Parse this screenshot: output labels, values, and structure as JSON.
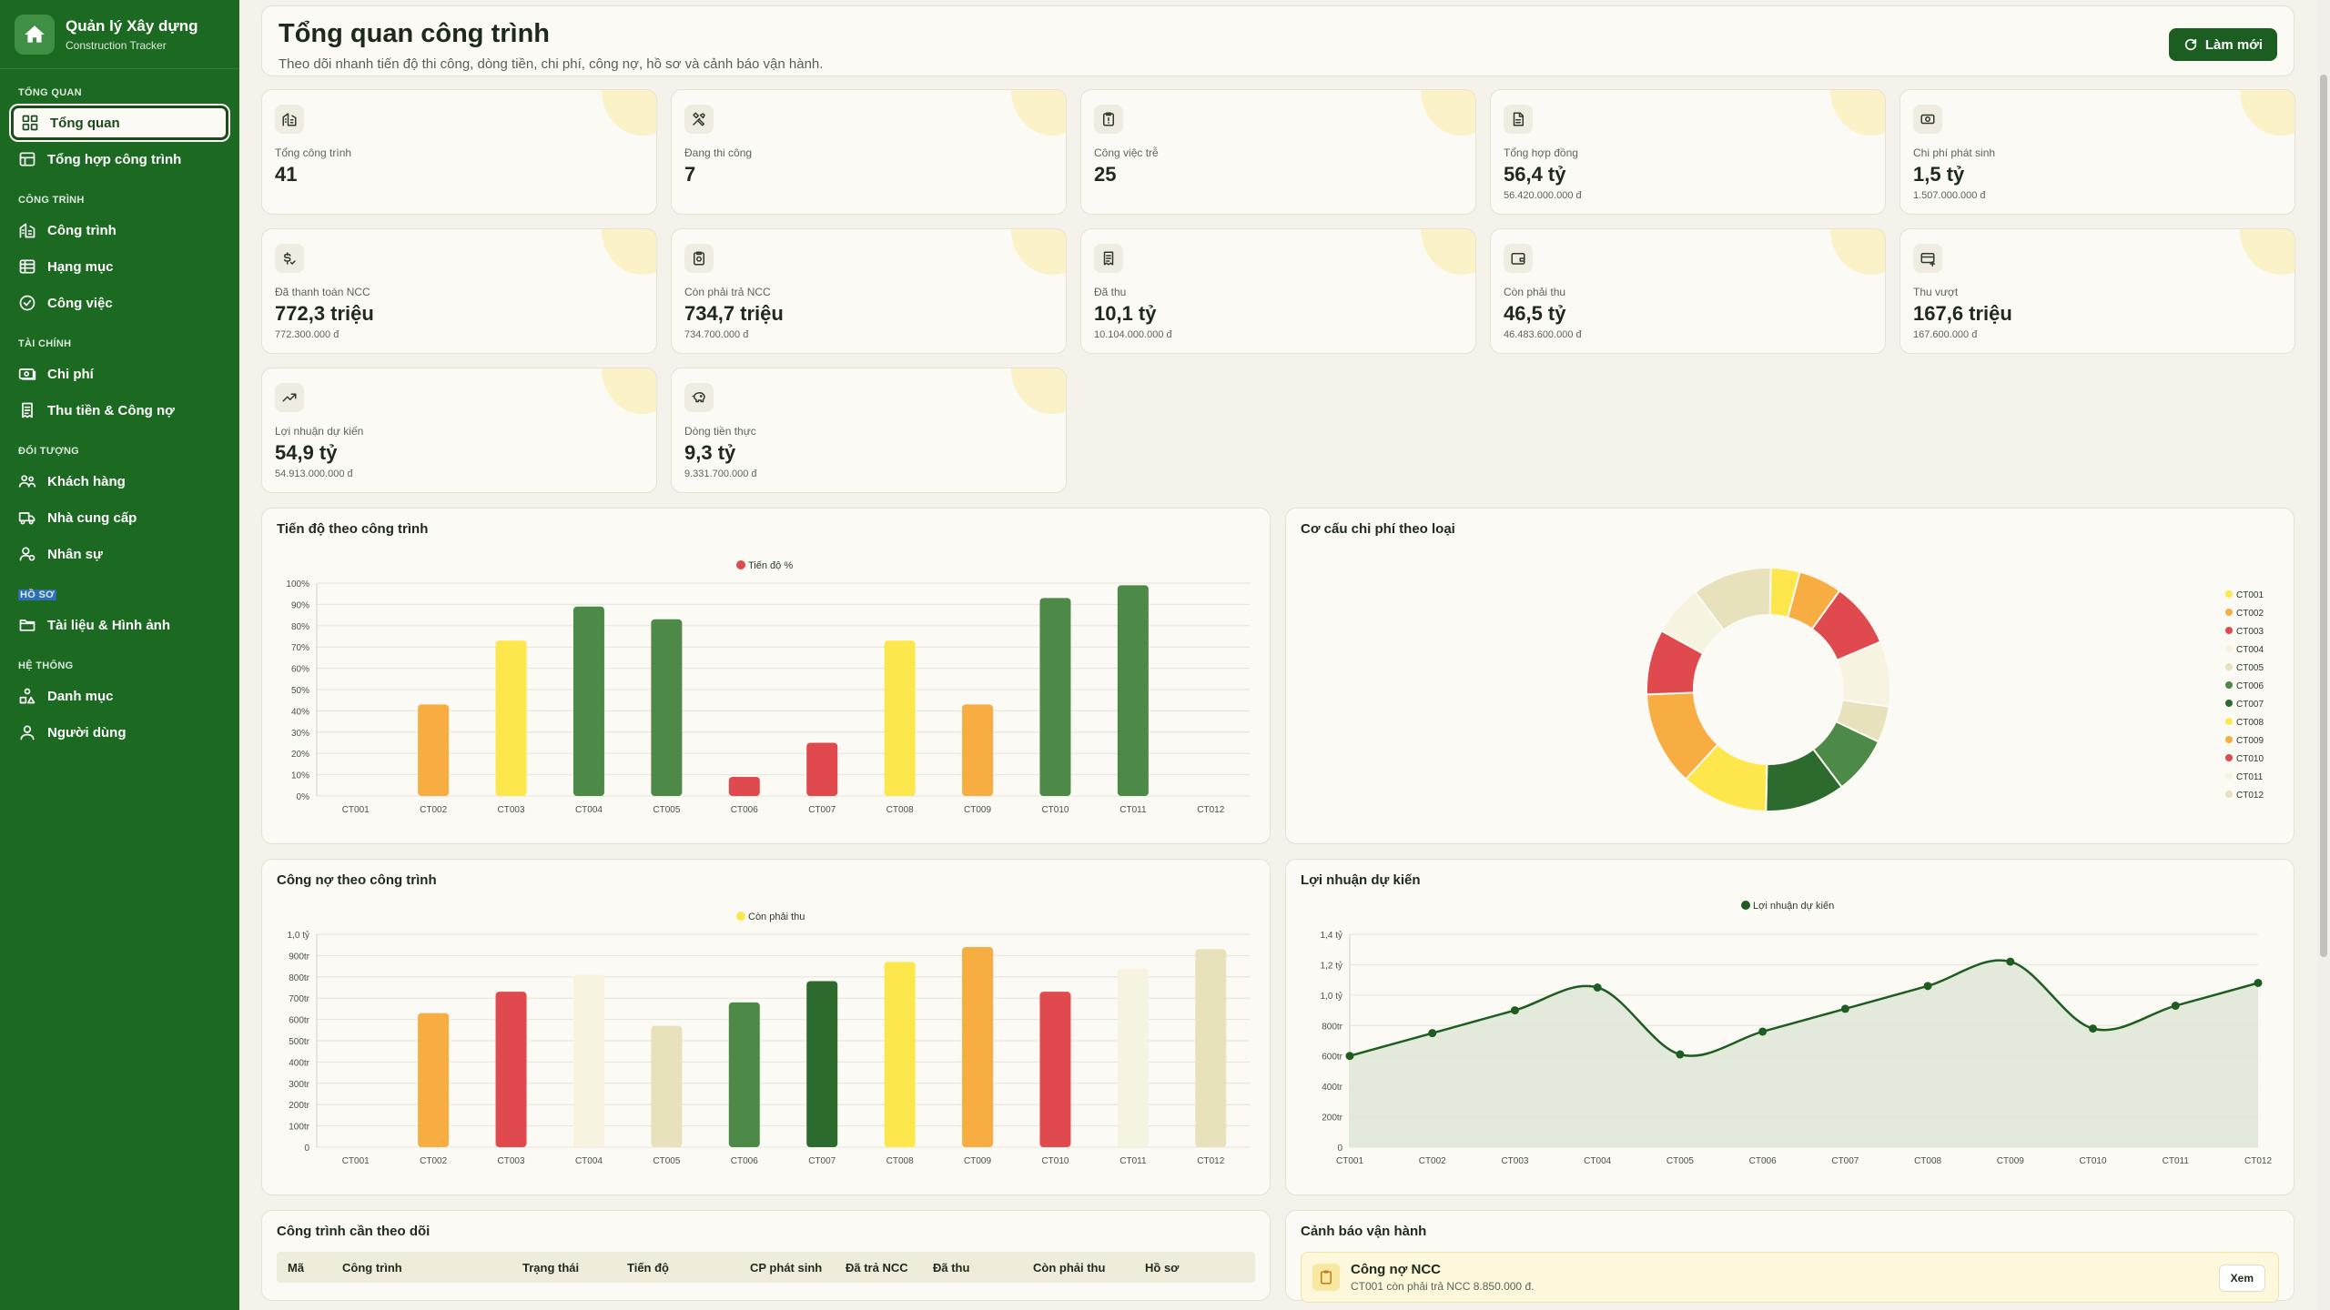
{
  "sidebar": {
    "brand_title": "Quản lý Xây dựng",
    "brand_sub": "Construction Tracker",
    "sections": [
      {
        "label": "TỔNG QUAN",
        "items": [
          {
            "label": "Tổng quan",
            "icon": "dashboard-icon"
          },
          {
            "label": "Tổng hợp công trình",
            "icon": "table-icon"
          }
        ]
      },
      {
        "label": "CÔNG TRÌNH",
        "items": [
          {
            "label": "Công trình",
            "icon": "building-icon"
          },
          {
            "label": "Hạng mục",
            "icon": "list-icon"
          },
          {
            "label": "Công việc",
            "icon": "check-circle-icon"
          }
        ]
      },
      {
        "label": "TÀI CHÍNH",
        "items": [
          {
            "label": "Chi phí",
            "icon": "money-icon"
          },
          {
            "label": "Thu tiền & Công nợ",
            "icon": "receipt-icon"
          }
        ]
      },
      {
        "label": "ĐỐI TƯỢNG",
        "items": [
          {
            "label": "Khách hàng",
            "icon": "users-icon"
          },
          {
            "label": "Nhà cung cấp",
            "icon": "truck-icon"
          },
          {
            "label": "Nhân sự",
            "icon": "user-gear-icon"
          }
        ]
      },
      {
        "label": "HỒ SƠ",
        "items": [
          {
            "label": "Tài liệu & Hình ảnh",
            "icon": "folder-icon"
          }
        ]
      },
      {
        "label": "HỆ THỐNG",
        "items": [
          {
            "label": "Danh mục",
            "icon": "shapes-icon"
          },
          {
            "label": "Người dùng",
            "icon": "user-icon"
          }
        ]
      }
    ]
  },
  "header": {
    "title": "Tổng quan công trình",
    "subtitle": "Theo dõi nhanh tiến độ thi công, dòng tiền, chi phí, công nợ, hồ sơ và cảnh báo vận hành.",
    "refresh_label": "Làm mới"
  },
  "kpis": [
    {
      "label": "Tổng công trình",
      "value": "41",
      "sub": "",
      "icon": "building-icon"
    },
    {
      "label": "Đang thi công",
      "value": "7",
      "sub": "",
      "icon": "tools-icon"
    },
    {
      "label": "Công việc trễ",
      "value": "25",
      "sub": "",
      "icon": "clipboard-alert-icon"
    },
    {
      "label": "Tổng hợp đồng",
      "value": "56,4 tỷ",
      "sub": "56.420.000.000 đ",
      "icon": "contract-icon"
    },
    {
      "label": "Chi phí phát sinh",
      "value": "1,5 tỷ",
      "sub": "1.507.000.000 đ",
      "icon": "cash-icon"
    },
    {
      "label": "Đã thanh toán NCC",
      "value": "772,3 triệu",
      "sub": "772.300.000 đ",
      "icon": "dollar-check-icon"
    },
    {
      "label": "Còn phải trả NCC",
      "value": "734,7 triệu",
      "sub": "734.700.000 đ",
      "icon": "clipboard-money-icon"
    },
    {
      "label": "Đã thu",
      "value": "10,1 tỷ",
      "sub": "10.104.000.000 đ",
      "icon": "receipt-icon"
    },
    {
      "label": "Còn phải thu",
      "value": "46,5 tỷ",
      "sub": "46.483.600.000 đ",
      "icon": "wallet-icon"
    },
    {
      "label": "Thu vượt",
      "value": "167,6 triệu",
      "sub": "167.600.000 đ",
      "icon": "card-plus-icon"
    },
    {
      "label": "Lợi nhuận dự kiến",
      "value": "54,9 tỷ",
      "sub": "54.913.000.000 đ",
      "icon": "trend-up-icon"
    },
    {
      "label": "Dòng tiền thực",
      "value": "9,3 tỷ",
      "sub": "9.331.700.000 đ",
      "icon": "piggy-bank-icon"
    }
  ],
  "colors": {
    "green": "#4d8a48",
    "dark_green": "#2d6a2d",
    "yellow": "#fde74c",
    "orange": "#f7ad42",
    "red": "#e0494d",
    "cream": "#f7f3e1",
    "beige": "#e8e2bc"
  },
  "chart_data": [
    {
      "type": "bar",
      "title": "Tiến độ theo công trình",
      "legend": "Tiến độ %",
      "categories": [
        "CT001",
        "CT002",
        "CT003",
        "CT004",
        "CT005",
        "CT006",
        "CT007",
        "CT008",
        "CT009",
        "CT010",
        "CT011",
        "CT012"
      ],
      "values": [
        0,
        43,
        73,
        89,
        83,
        9,
        25,
        73,
        43,
        93,
        99,
        0
      ],
      "colors": [
        "#4d8a48",
        "#f7ad42",
        "#fde74c",
        "#4d8a48",
        "#4d8a48",
        "#e0494d",
        "#e0494d",
        "#fde74c",
        "#f7ad42",
        "#4d8a48",
        "#4d8a48",
        "#4d8a48"
      ],
      "ylim": [
        0,
        100
      ],
      "yticks": [
        "0%",
        "10%",
        "20%",
        "30%",
        "40%",
        "50%",
        "60%",
        "70%",
        "80%",
        "90%",
        "100%"
      ],
      "grid": true
    },
    {
      "type": "pie",
      "title": "Cơ cấu chi phí theo loại",
      "categories": [
        "CT001",
        "CT002",
        "CT003",
        "CT004",
        "CT005",
        "CT006",
        "CT007",
        "CT008",
        "CT009",
        "CT010",
        "CT011",
        "CT012"
      ],
      "values": [
        4,
        6,
        9,
        9,
        5,
        8,
        11,
        12,
        13,
        9,
        7,
        11
      ],
      "colors": [
        "#fde74c",
        "#f7ad42",
        "#e0494d",
        "#f7f3e1",
        "#e8e2bc",
        "#4d8a48",
        "#2d6a2d",
        "#fde74c",
        "#f7ad42",
        "#e0494d",
        "#f7f3e1",
        "#e8e2bc"
      ],
      "legend_position": "right"
    },
    {
      "type": "bar",
      "title": "Công nợ theo công trình",
      "legend": "Còn phải thu",
      "categories": [
        "CT001",
        "CT002",
        "CT003",
        "CT004",
        "CT005",
        "CT006",
        "CT007",
        "CT008",
        "CT009",
        "CT010",
        "CT011",
        "CT012"
      ],
      "values": [
        0,
        0.63,
        0.73,
        0.81,
        0.57,
        0.68,
        0.78,
        0.87,
        0.94,
        0.73,
        0.84,
        0.93
      ],
      "colors": [
        "#4d8a48",
        "#f7ad42",
        "#e0494d",
        "#f7f3e1",
        "#e8e2bc",
        "#4d8a48",
        "#2d6a2d",
        "#fde74c",
        "#f7ad42",
        "#e0494d",
        "#f7f3e1",
        "#e8e2bc"
      ],
      "ylim": [
        0,
        1.0
      ],
      "yticks": [
        "0",
        "100tr",
        "200tr",
        "300tr",
        "400tr",
        "500tr",
        "600tr",
        "700tr",
        "800tr",
        "900tr",
        "1,0 tỷ"
      ],
      "grid": true
    },
    {
      "type": "area",
      "title": "Lợi nhuận dự kiến",
      "legend": "Lợi nhuận dự kiến",
      "categories": [
        "CT001",
        "CT002",
        "CT003",
        "CT004",
        "CT005",
        "CT006",
        "CT007",
        "CT008",
        "CT009",
        "CT010",
        "CT011",
        "CT012"
      ],
      "values": [
        0.6,
        0.75,
        0.9,
        1.05,
        0.61,
        0.76,
        0.91,
        1.06,
        1.22,
        0.78,
        0.93,
        1.08
      ],
      "ylim": [
        0,
        1.4
      ],
      "yticks": [
        "0",
        "200tr",
        "400tr",
        "600tr",
        "800tr",
        "1,0 tỷ",
        "1,2 tỷ",
        "1,4 tỷ"
      ],
      "grid": true
    }
  ],
  "watch_table": {
    "title": "Công trình cần theo dõi",
    "columns": [
      "Mã",
      "Công trình",
      "Trạng thái",
      "Tiến độ",
      "CP phát sinh",
      "Đã trả NCC",
      "Đã thu",
      "Còn phải thu",
      "Hồ sơ"
    ]
  },
  "alerts": {
    "title": "Cảnh báo vận hành",
    "items": [
      {
        "title": "Công nợ NCC",
        "desc": "CT001 còn phải trả NCC 8.850.000 đ.",
        "action": "Xem"
      }
    ]
  }
}
